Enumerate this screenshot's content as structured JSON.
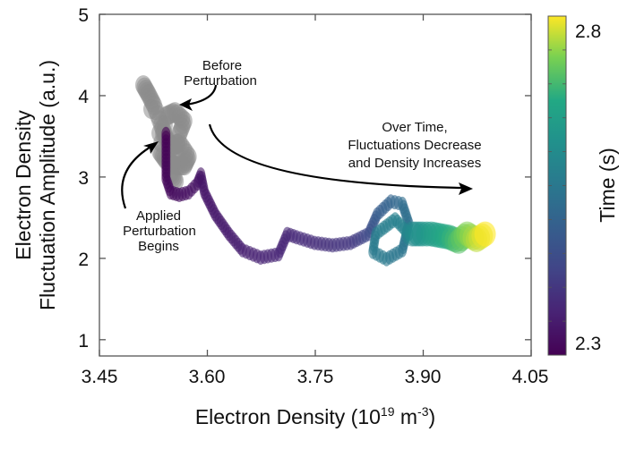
{
  "chart_data": {
    "type": "scatter",
    "title": "",
    "xlabel": "Electron Density (10",
    "xlabel_exp": "19",
    "xlabel_unit": " m",
    "xlabel_unit_exp": "-3",
    "xlabel_close": ")",
    "ylabel_line1": "Electron Density",
    "ylabel_line2": "Fluctuation Amplitude (a.u.)",
    "xlim": [
      3.45,
      4.05
    ],
    "ylim": [
      0.8,
      5
    ],
    "xticks": [
      "3.45",
      "3.60",
      "3.75",
      "3.90",
      "4.05"
    ],
    "xtick_values": [
      3.45,
      3.6,
      3.75,
      3.9,
      4.05
    ],
    "yticks": [
      "1",
      "2",
      "3",
      "4",
      "5"
    ],
    "ytick_values": [
      1,
      2,
      3,
      4,
      5
    ],
    "grid": false,
    "colorbar": {
      "label": "Time (s)",
      "min_label": "2.3",
      "max_label": "2.8",
      "range": [
        2.3,
        2.8
      ],
      "colormap": "viridis"
    },
    "before_series": {
      "color": "#8c8c8c",
      "points": [
        [
          3.511,
          4.13
        ],
        [
          3.518,
          4.02
        ],
        [
          3.526,
          3.88
        ],
        [
          3.536,
          3.64
        ],
        [
          3.543,
          3.47
        ],
        [
          3.549,
          3.36
        ],
        [
          3.561,
          3.42
        ],
        [
          3.574,
          3.25
        ],
        [
          3.568,
          3.14
        ],
        [
          3.555,
          3.14
        ],
        [
          3.543,
          3.2
        ],
        [
          3.534,
          3.31
        ],
        [
          3.543,
          3.75
        ],
        [
          3.555,
          3.8
        ],
        [
          3.568,
          3.69
        ],
        [
          3.561,
          3.53
        ],
        [
          3.549,
          3.05
        ],
        [
          3.556,
          2.95
        ]
      ]
    },
    "trajectory": [
      {
        "x": 3.5425,
        "y": 3.53,
        "t": 2.3
      },
      {
        "x": 3.5425,
        "y": 3.25,
        "t": 2.305
      },
      {
        "x": 3.5425,
        "y": 2.98,
        "t": 2.31
      },
      {
        "x": 3.549,
        "y": 2.81,
        "t": 2.315
      },
      {
        "x": 3.561,
        "y": 2.78,
        "t": 2.32
      },
      {
        "x": 3.574,
        "y": 2.81,
        "t": 2.325
      },
      {
        "x": 3.586,
        "y": 2.92,
        "t": 2.33
      },
      {
        "x": 3.591,
        "y": 3.03,
        "t": 2.335
      },
      {
        "x": 3.596,
        "y": 2.81,
        "t": 2.34
      },
      {
        "x": 3.611,
        "y": 2.54,
        "t": 2.345
      },
      {
        "x": 3.63,
        "y": 2.3,
        "t": 2.35
      },
      {
        "x": 3.649,
        "y": 2.1,
        "t": 2.355
      },
      {
        "x": 3.674,
        "y": 2.01,
        "t": 2.36
      },
      {
        "x": 3.699,
        "y": 2.05,
        "t": 2.365
      },
      {
        "x": 3.711,
        "y": 2.3,
        "t": 2.37
      },
      {
        "x": 3.724,
        "y": 2.26,
        "t": 2.375
      },
      {
        "x": 3.749,
        "y": 2.19,
        "t": 2.38
      },
      {
        "x": 3.774,
        "y": 2.16,
        "t": 2.39
      },
      {
        "x": 3.799,
        "y": 2.19,
        "t": 2.4
      },
      {
        "x": 3.824,
        "y": 2.3,
        "t": 2.44
      },
      {
        "x": 3.836,
        "y": 2.54,
        "t": 2.48
      },
      {
        "x": 3.855,
        "y": 2.7,
        "t": 2.5
      },
      {
        "x": 3.871,
        "y": 2.67,
        "t": 2.52
      },
      {
        "x": 3.88,
        "y": 2.43,
        "t": 2.53
      },
      {
        "x": 3.871,
        "y": 2.1,
        "t": 2.54
      },
      {
        "x": 3.849,
        "y": 1.99,
        "t": 2.55
      },
      {
        "x": 3.83,
        "y": 2.08,
        "t": 2.555
      },
      {
        "x": 3.834,
        "y": 2.3,
        "t": 2.56
      },
      {
        "x": 3.861,
        "y": 2.48,
        "t": 2.57
      },
      {
        "x": 3.88,
        "y": 2.3,
        "t": 2.58
      },
      {
        "x": 3.899,
        "y": 2.3,
        "t": 2.62
      },
      {
        "x": 3.911,
        "y": 2.3,
        "t": 2.64
      },
      {
        "x": 3.936,
        "y": 2.26,
        "t": 2.68
      },
      {
        "x": 3.949,
        "y": 2.21,
        "t": 2.71
      },
      {
        "x": 3.961,
        "y": 2.3,
        "t": 2.74
      },
      {
        "x": 3.974,
        "y": 2.23,
        "t": 2.77
      },
      {
        "x": 3.986,
        "y": 2.3,
        "t": 2.8
      }
    ],
    "annotations": {
      "before": [
        "Before",
        "Perturbation"
      ],
      "applied": [
        "Applied",
        "Perturbation",
        "Begins"
      ],
      "overtime": [
        "Over Time,",
        "Fluctuations Decrease",
        "and Density Increases"
      ]
    }
  }
}
